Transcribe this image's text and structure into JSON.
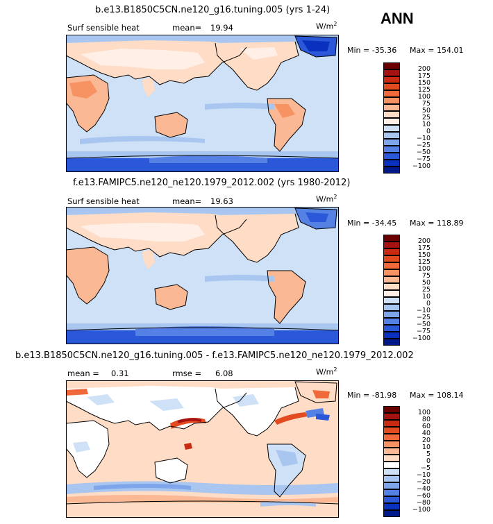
{
  "season": "ANN",
  "panels": [
    {
      "title": "b.e13.B1850C5CN.ne120_g16.tuning.005 (yrs 1-24)",
      "variable": "Surf sensible heat",
      "stat1_label": "mean=",
      "stat1_value": "19.94",
      "units_base": "W/m",
      "units_sup": "2",
      "min_label": "Min = -35.36",
      "max_label": "Max = 154.01",
      "colorbar": {
        "labels": [
          "200",
          "175",
          "150",
          "125",
          "100",
          "75",
          "50",
          "25",
          "10",
          "0",
          "−10",
          "−25",
          "−50",
          "−75",
          "−100"
        ],
        "colors": [
          "#6b0000",
          "#a51212",
          "#c82b12",
          "#e24a1f",
          "#f0693a",
          "#f79263",
          "#fbb894",
          "#fedcc6",
          "#ffefe6",
          "#cfe1f7",
          "#a9c6f0",
          "#7fa6ea",
          "#5481e3",
          "#2b58d9",
          "#0a31bd",
          "#001a8c"
        ]
      },
      "chart_data": {
        "type": "heatmap",
        "title": "b.e13.B1850C5CN.ne120_g16.tuning.005 (yrs 1-24)",
        "variable": "Surf sensible heat",
        "units": "W/m2",
        "mean": 19.94,
        "min": -35.36,
        "max": 154.01,
        "levels": [
          -100,
          -75,
          -50,
          -25,
          -10,
          0,
          10,
          25,
          50,
          75,
          100,
          125,
          150,
          175,
          200
        ]
      }
    },
    {
      "title": "f.e13.FAMIPC5.ne120_ne120.1979_2012.002 (yrs 1980-2012)",
      "variable": "Surf sensible heat",
      "stat1_label": "mean=",
      "stat1_value": "19.63",
      "units_base": "W/m",
      "units_sup": "2",
      "min_label": "Min = -34.45",
      "max_label": "Max = 118.89",
      "colorbar": {
        "labels": [
          "200",
          "175",
          "150",
          "125",
          "100",
          "75",
          "50",
          "25",
          "10",
          "0",
          "−10",
          "−25",
          "−50",
          "−75",
          "−100"
        ],
        "colors": [
          "#6b0000",
          "#a51212",
          "#c82b12",
          "#e24a1f",
          "#f0693a",
          "#f79263",
          "#fbb894",
          "#fedcc6",
          "#ffefe6",
          "#cfe1f7",
          "#a9c6f0",
          "#7fa6ea",
          "#5481e3",
          "#2b58d9",
          "#0a31bd",
          "#001a8c"
        ]
      },
      "chart_data": {
        "type": "heatmap",
        "title": "f.e13.FAMIPC5.ne120_ne120.1979_2012.002 (yrs 1980-2012)",
        "variable": "Surf sensible heat",
        "units": "W/m2",
        "mean": 19.63,
        "min": -34.45,
        "max": 118.89,
        "levels": [
          -100,
          -75,
          -50,
          -25,
          -10,
          0,
          10,
          25,
          50,
          75,
          100,
          125,
          150,
          175,
          200
        ]
      }
    },
    {
      "title": "b.e13.B1850C5CN.ne120_g16.tuning.005 - f.e13.FAMIPC5.ne120_ne120.1979_2012.002",
      "variable": "",
      "stat1_label": "mean =",
      "stat1_value": "0.31",
      "stat2_label": "rmse =",
      "stat2_value": "6.08",
      "units_base": "W/m",
      "units_sup": "2",
      "min_label": "Min = -81.98",
      "max_label": "Max = 108.14",
      "colorbar": {
        "labels": [
          "100",
          "80",
          "60",
          "40",
          "20",
          "10",
          "5",
          "0",
          "−5",
          "−10",
          "−20",
          "−40",
          "−60",
          "−80",
          "−100"
        ],
        "colors": [
          "#6b0000",
          "#a51212",
          "#c82b12",
          "#e24a1f",
          "#f0693a",
          "#f79263",
          "#fbb894",
          "#fedcc6",
          "#ffffff",
          "#cfe1f7",
          "#a9c6f0",
          "#7fa6ea",
          "#5481e3",
          "#2b58d9",
          "#0a31bd",
          "#001a8c"
        ]
      },
      "chart_data": {
        "type": "heatmap",
        "title": "b.e13.B1850C5CN.ne120_g16.tuning.005 - f.e13.FAMIPC5.ne120_ne120.1979_2012.002",
        "units": "W/m2",
        "mean": 0.31,
        "rmse": 6.08,
        "min": -81.98,
        "max": 108.14,
        "levels": [
          -100,
          -80,
          -60,
          -40,
          -20,
          -10,
          -5,
          0,
          5,
          10,
          20,
          40,
          60,
          80,
          100
        ]
      }
    }
  ]
}
